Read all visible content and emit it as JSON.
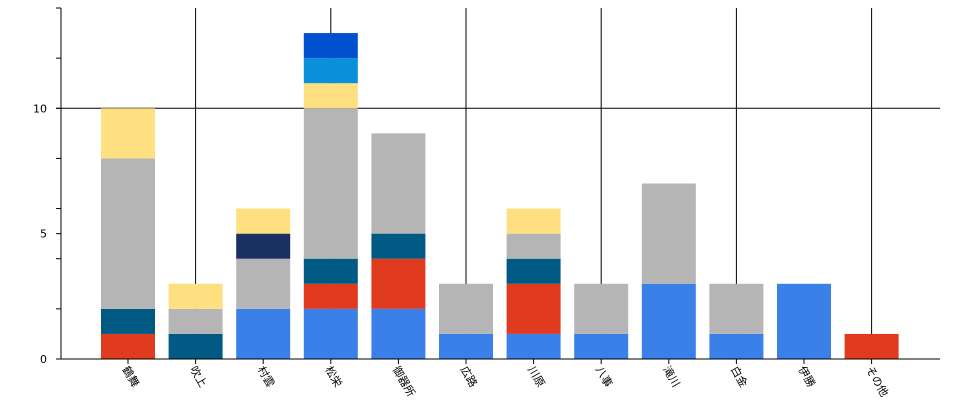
{
  "chart_data": {
    "type": "bar",
    "stacked": true,
    "title": "",
    "xlabel": "",
    "ylabel": "",
    "ylim": [
      0,
      14
    ],
    "y_tick_labels": [
      0,
      5,
      10
    ],
    "grid": "sparse",
    "legend": "none",
    "categories": [
      "鶴舞",
      "吹上",
      "村雲",
      "松栄",
      "御器所",
      "広路",
      "川原",
      "八事",
      "滝川",
      "白金",
      "伊勝",
      "その他"
    ],
    "series": [
      {
        "color": "#3a80e8",
        "values": [
          0,
          0,
          2,
          2,
          2,
          1,
          1,
          1,
          3,
          1,
          3,
          0
        ]
      },
      {
        "color": "#e03a1f",
        "values": [
          1,
          0,
          0,
          1,
          2,
          0,
          2,
          0,
          0,
          0,
          0,
          1
        ]
      },
      {
        "color": "#005a84",
        "values": [
          1,
          1,
          0,
          1,
          1,
          0,
          1,
          0,
          0,
          0,
          0,
          0
        ]
      },
      {
        "color": "#b5b5b5",
        "values": [
          6,
          1,
          2,
          6,
          4,
          2,
          1,
          2,
          4,
          2,
          0,
          0
        ]
      },
      {
        "color": "#1a3060",
        "values": [
          0,
          0,
          1,
          0,
          0,
          0,
          0,
          0,
          0,
          0,
          0,
          0
        ]
      },
      {
        "color": "#ffe080",
        "values": [
          2,
          1,
          1,
          1,
          0,
          0,
          1,
          0,
          0,
          0,
          0,
          0
        ]
      },
      {
        "color": "#0a90d8",
        "values": [
          0,
          0,
          0,
          1,
          0,
          0,
          0,
          0,
          0,
          0,
          0,
          0
        ]
      },
      {
        "color": "#0050d0",
        "values": [
          0,
          0,
          0,
          1,
          0,
          0,
          0,
          0,
          0,
          0,
          0,
          0
        ]
      }
    ]
  }
}
